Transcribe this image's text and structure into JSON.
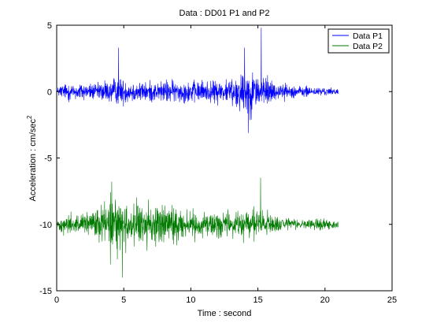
{
  "chart_data": {
    "type": "line",
    "title": "Data : DD01 P1 and P2",
    "xlabel": "Time : second",
    "ylabel": "Acceleration : cm/sec",
    "ylabel_superscript": "2",
    "xlim": [
      0,
      25
    ],
    "ylim": [
      -15,
      5
    ],
    "x_ticks": [
      0,
      5,
      10,
      15,
      20,
      25
    ],
    "y_ticks": [
      -15,
      -10,
      -5,
      0,
      5
    ],
    "x_tick_labels": [
      "0",
      "5",
      "10",
      "15",
      "20",
      "25"
    ],
    "y_tick_labels": [
      "-15",
      "-10",
      "-5",
      "0",
      "5"
    ],
    "grid": false,
    "legend_position": "top-right",
    "series": [
      {
        "name": "Data P1",
        "color": "#0000ff",
        "offset": 0,
        "x_range": [
          0,
          21
        ],
        "amplitude_envelope": [
          [
            0.0,
            0.3
          ],
          [
            0.5,
            1.0
          ],
          [
            1.5,
            1.0
          ],
          [
            3.0,
            1.0
          ],
          [
            4.5,
            1.6
          ],
          [
            5.5,
            1.2
          ],
          [
            7.0,
            1.1
          ],
          [
            8.5,
            1.3
          ],
          [
            10.0,
            1.2
          ],
          [
            11.5,
            1.2
          ],
          [
            13.0,
            1.6
          ],
          [
            14.0,
            2.5
          ],
          [
            15.0,
            2.4
          ],
          [
            16.0,
            1.2
          ],
          [
            17.0,
            0.8
          ],
          [
            18.5,
            0.6
          ],
          [
            20.0,
            0.45
          ],
          [
            21.0,
            0.3
          ]
        ],
        "peaks": [
          {
            "x": 4.6,
            "y": 3.3
          },
          {
            "x": 14.0,
            "y": 3.3
          },
          {
            "x": 15.25,
            "y": 4.8
          },
          {
            "x": 14.3,
            "y": -3.1
          }
        ]
      },
      {
        "name": "Data P2",
        "color": "#007a00",
        "offset": -10,
        "x_range": [
          0,
          21
        ],
        "amplitude_envelope": [
          [
            0.0,
            0.4
          ],
          [
            0.5,
            1.0
          ],
          [
            2.0,
            1.3
          ],
          [
            3.5,
            2.0
          ],
          [
            4.5,
            3.0
          ],
          [
            5.5,
            2.4
          ],
          [
            7.0,
            2.2
          ],
          [
            8.5,
            2.2
          ],
          [
            10.0,
            1.6
          ],
          [
            11.5,
            1.4
          ],
          [
            13.0,
            1.5
          ],
          [
            14.5,
            1.9
          ],
          [
            15.5,
            1.6
          ],
          [
            16.5,
            0.9
          ],
          [
            18.0,
            0.5
          ],
          [
            19.5,
            0.7
          ],
          [
            21.0,
            0.4
          ]
        ],
        "peaks": [
          {
            "x": 4.1,
            "y": -6.8
          },
          {
            "x": 15.2,
            "y": -6.5
          },
          {
            "x": 4.9,
            "y": -14.0
          },
          {
            "x": 4.0,
            "y": -13.0
          }
        ]
      }
    ]
  }
}
